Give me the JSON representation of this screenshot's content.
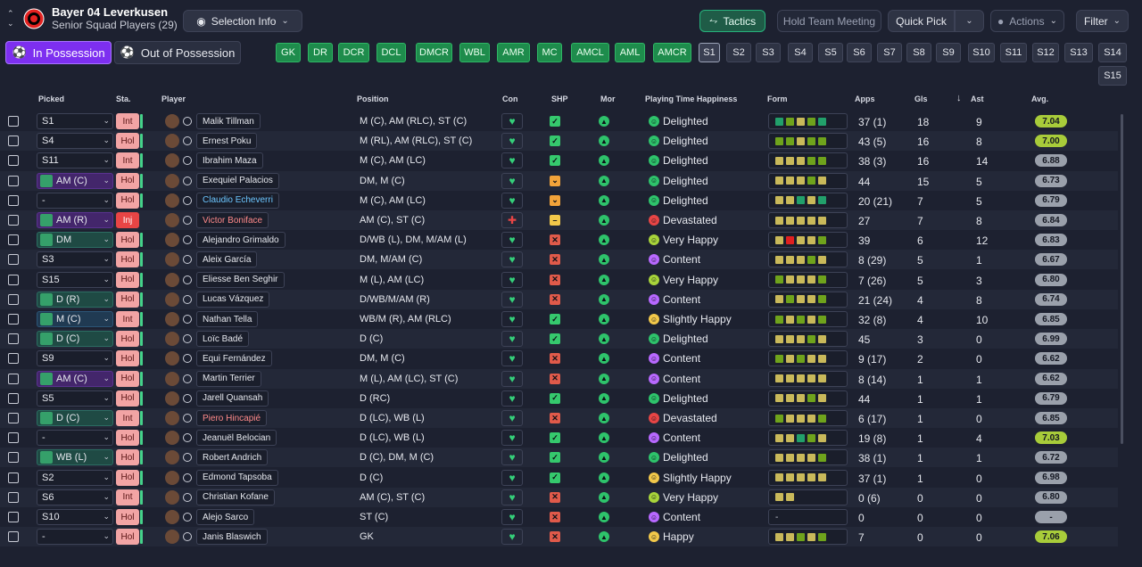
{
  "club": {
    "name": "Bayer 04 Leverkusen",
    "subtitle": "Senior Squad Players (29)"
  },
  "toolbar": {
    "selection_info": "Selection Info",
    "tactics": "Tactics",
    "hold_meeting": "Hold Team Meeting",
    "quick_pick": "Quick Pick",
    "actions": "Actions",
    "filter": "Filter"
  },
  "possession": {
    "in": "In Possession",
    "out": "Out of Possession"
  },
  "position_buttons": [
    "GK",
    "DR",
    "DCR",
    "DCL",
    "DMCR",
    "WBL",
    "AMR",
    "MC",
    "AMCL",
    "AML",
    "AMCR"
  ],
  "sub_buttons": [
    "S1",
    "S2",
    "S3",
    "S4",
    "S5",
    "S6",
    "S7",
    "S8",
    "S9",
    "S10",
    "S11",
    "S12",
    "S13",
    "S14",
    "S15"
  ],
  "columns": {
    "picked": "Picked",
    "sta": "Sta.",
    "player": "Player",
    "position": "Position",
    "con": "Con",
    "shp": "SHP",
    "mor": "Mor",
    "pth": "Playing Time Happiness",
    "form": "Form",
    "apps": "Apps",
    "gls": "Gls",
    "ast": "Ast",
    "avg": "Avg.",
    "sort_icon": "sort-desc-arrow"
  },
  "colors": {
    "accent_purple": "#7d2ff0",
    "green": "#1e8c4c",
    "form_olive": "#c9b95a",
    "form_green": "#6fa31c",
    "form_teal": "#22a06b",
    "form_red": "#e02020"
  },
  "players": [
    {
      "picked": "S1",
      "role": "",
      "sta": "Int",
      "name": "Malik Tillman",
      "name_style": "",
      "position": "M (C), AM (RLC), ST (C)",
      "shp": "ok",
      "ptf": "delighted",
      "pt": "Delighted",
      "form": [
        "t",
        "g",
        "o",
        "g",
        "t"
      ],
      "apps": "37 (1)",
      "gls": "18",
      "ast": "9",
      "avg": "7.04",
      "avg_hi": true
    },
    {
      "picked": "S4",
      "role": "",
      "sta": "Hol",
      "name": "Ernest Poku",
      "name_style": "",
      "position": "M (RL), AM (RLC), ST (C)",
      "shp": "ok",
      "ptf": "delighted",
      "pt": "Delighted",
      "form": [
        "g",
        "g",
        "o",
        "g",
        "g"
      ],
      "apps": "43 (5)",
      "gls": "16",
      "ast": "8",
      "avg": "7.00",
      "avg_hi": true
    },
    {
      "picked": "S11",
      "role": "",
      "sta": "Int",
      "name": "Ibrahim Maza",
      "name_style": "",
      "position": "M (C), AM (LC)",
      "shp": "ok",
      "ptf": "delighted",
      "pt": "Delighted",
      "form": [
        "o",
        "o",
        "o",
        "g",
        "g"
      ],
      "apps": "38 (3)",
      "gls": "16",
      "ast": "14",
      "avg": "6.88",
      "avg_hi": false
    },
    {
      "picked": "AM (C)",
      "role": "att",
      "sta": "Hol",
      "name": "Exequiel Palacios",
      "name_style": "",
      "position": "DM, M (C)",
      "shp": "warn",
      "ptf": "delighted",
      "pt": "Delighted",
      "form": [
        "o",
        "o",
        "o",
        "g",
        "o"
      ],
      "apps": "44",
      "gls": "15",
      "ast": "5",
      "avg": "6.73",
      "avg_hi": false
    },
    {
      "picked": "-",
      "role": "",
      "sta": "Hol",
      "name": "Claudio Echeverri",
      "name_style": "link",
      "position": "M (C), AM (LC)",
      "shp": "warn",
      "ptf": "delighted",
      "pt": "Delighted",
      "form": [
        "o",
        "o",
        "t",
        "o",
        "t"
      ],
      "apps": "20 (21)",
      "gls": "7",
      "ast": "5",
      "avg": "6.79",
      "avg_hi": false
    },
    {
      "picked": "AM (R)",
      "role": "att",
      "sta": "Inj",
      "name": "Victor Boniface",
      "name_style": "inj",
      "position": "AM (C), ST (C)",
      "shp": "mid",
      "ptf": "devastated",
      "pt": "Devastated",
      "form": [
        "o",
        "o",
        "o",
        "o",
        "o"
      ],
      "apps": "27",
      "gls": "7",
      "ast": "8",
      "avg": "6.84",
      "avg_hi": false
    },
    {
      "picked": "DM",
      "role": "def",
      "sta": "Hol",
      "name": "Alejandro Grimaldo",
      "name_style": "",
      "position": "D/WB (L), DM, M/AM (L)",
      "shp": "bad",
      "ptf": "veryhappy",
      "pt": "Very Happy",
      "form": [
        "o",
        "r",
        "o",
        "o",
        "g"
      ],
      "apps": "39",
      "gls": "6",
      "ast": "12",
      "avg": "6.83",
      "avg_hi": false
    },
    {
      "picked": "S3",
      "role": "",
      "sta": "Hol",
      "name": "Aleix García",
      "name_style": "",
      "position": "DM, M/AM (C)",
      "shp": "bad",
      "ptf": "content",
      "pt": "Content",
      "form": [
        "o",
        "o",
        "o",
        "g",
        "o"
      ],
      "apps": "8 (29)",
      "gls": "5",
      "ast": "1",
      "avg": "6.67",
      "avg_hi": false
    },
    {
      "picked": "S15",
      "role": "",
      "sta": "Hol",
      "name": "Eliesse Ben Seghir",
      "name_style": "",
      "position": "M (L), AM (LC)",
      "shp": "bad",
      "ptf": "veryhappy",
      "pt": "Very Happy",
      "form": [
        "g",
        "o",
        "o",
        "o",
        "g"
      ],
      "apps": "7 (26)",
      "gls": "5",
      "ast": "3",
      "avg": "6.80",
      "avg_hi": false
    },
    {
      "picked": "D (R)",
      "role": "def",
      "sta": "Hol",
      "name": "Lucas Vázquez",
      "name_style": "",
      "position": "D/WB/M/AM (R)",
      "shp": "bad",
      "ptf": "content",
      "pt": "Content",
      "form": [
        "o",
        "g",
        "o",
        "o",
        "g"
      ],
      "apps": "21 (24)",
      "gls": "4",
      "ast": "8",
      "avg": "6.74",
      "avg_hi": false
    },
    {
      "picked": "M (C)",
      "role": "mid",
      "sta": "Int",
      "name": "Nathan Tella",
      "name_style": "",
      "position": "WB/M (R), AM (RLC)",
      "shp": "ok",
      "ptf": "slightly",
      "pt": "Slightly Happy",
      "form": [
        "g",
        "o",
        "g",
        "o",
        "g"
      ],
      "apps": "32 (8)",
      "gls": "4",
      "ast": "10",
      "avg": "6.85",
      "avg_hi": false
    },
    {
      "picked": "D (C)",
      "role": "def",
      "sta": "Hol",
      "name": "Loïc Badé",
      "name_style": "",
      "position": "D (C)",
      "shp": "ok",
      "ptf": "delighted",
      "pt": "Delighted",
      "form": [
        "o",
        "o",
        "o",
        "g",
        "o"
      ],
      "apps": "45",
      "gls": "3",
      "ast": "0",
      "avg": "6.99",
      "avg_hi": false
    },
    {
      "picked": "S9",
      "role": "",
      "sta": "Hol",
      "name": "Equi Fernández",
      "name_style": "",
      "position": "DM, M (C)",
      "shp": "bad",
      "ptf": "content",
      "pt": "Content",
      "form": [
        "g",
        "o",
        "g",
        "o",
        "o"
      ],
      "apps": "9 (17)",
      "gls": "2",
      "ast": "0",
      "avg": "6.62",
      "avg_hi": false
    },
    {
      "picked": "AM (C)",
      "role": "att",
      "sta": "Hol",
      "name": "Martin Terrier",
      "name_style": "",
      "position": "M (L), AM (LC), ST (C)",
      "shp": "bad",
      "ptf": "content",
      "pt": "Content",
      "form": [
        "o",
        "o",
        "o",
        "o",
        "o"
      ],
      "apps": "8 (14)",
      "gls": "1",
      "ast": "1",
      "avg": "6.62",
      "avg_hi": false
    },
    {
      "picked": "S5",
      "role": "",
      "sta": "Hol",
      "name": "Jarell Quansah",
      "name_style": "",
      "position": "D (RC)",
      "shp": "ok",
      "ptf": "delighted",
      "pt": "Delighted",
      "form": [
        "o",
        "o",
        "o",
        "g",
        "o"
      ],
      "apps": "44",
      "gls": "1",
      "ast": "1",
      "avg": "6.79",
      "avg_hi": false
    },
    {
      "picked": "D (C)",
      "role": "def",
      "sta": "Int",
      "name": "Piero Hincapié",
      "name_style": "inj",
      "position": "D (LC), WB (L)",
      "shp": "bad",
      "ptf": "devastated",
      "pt": "Devastated",
      "form": [
        "g",
        "o",
        "o",
        "o",
        "g"
      ],
      "apps": "6 (17)",
      "gls": "1",
      "ast": "0",
      "avg": "6.85",
      "avg_hi": false
    },
    {
      "picked": "-",
      "role": "",
      "sta": "Hol",
      "name": "Jeanuël Belocian",
      "name_style": "",
      "position": "D (LC), WB (L)",
      "shp": "ok",
      "ptf": "content",
      "pt": "Content",
      "form": [
        "o",
        "o",
        "t",
        "g",
        "o"
      ],
      "apps": "19 (8)",
      "gls": "1",
      "ast": "4",
      "avg": "7.03",
      "avg_hi": true
    },
    {
      "picked": "WB (L)",
      "role": "def",
      "sta": "Hol",
      "name": "Robert Andrich",
      "name_style": "",
      "position": "D (C), DM, M (C)",
      "shp": "ok",
      "ptf": "delighted",
      "pt": "Delighted",
      "form": [
        "o",
        "o",
        "o",
        "o",
        "g"
      ],
      "apps": "38 (1)",
      "gls": "1",
      "ast": "1",
      "avg": "6.72",
      "avg_hi": false
    },
    {
      "picked": "S2",
      "role": "",
      "sta": "Hol",
      "name": "Edmond Tapsoba",
      "name_style": "",
      "position": "D (C)",
      "shp": "ok",
      "ptf": "slightly",
      "pt": "Slightly Happy",
      "form": [
        "o",
        "o",
        "o",
        "o",
        "o"
      ],
      "apps": "37 (1)",
      "gls": "1",
      "ast": "0",
      "avg": "6.98",
      "avg_hi": false
    },
    {
      "picked": "S6",
      "role": "",
      "sta": "Int",
      "name": "Christian Kofane",
      "name_style": "",
      "position": "AM (C), ST (C)",
      "shp": "bad",
      "ptf": "veryhappy",
      "pt": "Very Happy",
      "form": [
        "o",
        "o"
      ],
      "apps": "0 (6)",
      "gls": "0",
      "ast": "0",
      "avg": "6.80",
      "avg_hi": false
    },
    {
      "picked": "S10",
      "role": "",
      "sta": "Hol",
      "name": "Alejo Sarco",
      "name_style": "",
      "position": "ST (C)",
      "shp": "bad",
      "ptf": "content",
      "pt": "Content",
      "form": [],
      "apps": "0",
      "gls": "0",
      "ast": "0",
      "avg": "-",
      "avg_hi": false
    },
    {
      "picked": "-",
      "role": "",
      "sta": "Hol",
      "name": "Janis Blaswich",
      "name_style": "",
      "position": "GK",
      "shp": "bad",
      "ptf": "happy",
      "pt": "Happy",
      "form": [
        "o",
        "o",
        "g",
        "o",
        "g"
      ],
      "apps": "7",
      "gls": "0",
      "ast": "0",
      "avg": "7.06",
      "avg_hi": true
    }
  ]
}
